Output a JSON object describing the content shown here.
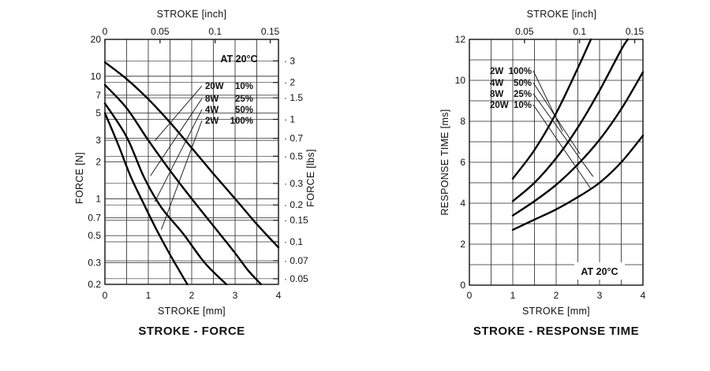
{
  "chart_data": [
    {
      "type": "line",
      "title": "STROKE - FORCE",
      "xlabel": "STROKE [mm]",
      "x2label": "STROKE [inch]",
      "ylabel": "FORCE [N]",
      "y2label": "FORCE [lbs]",
      "yscale": "log",
      "xlim": [
        0,
        4
      ],
      "ylim": [
        0.2,
        20
      ],
      "x2lim": [
        0,
        0.1575
      ],
      "x_ticks": [
        "0",
        "1",
        "2",
        "3",
        "4"
      ],
      "x2_ticks": [
        "0",
        "0.05",
        "0.1",
        "0.15"
      ],
      "y_ticks": [
        "0.2",
        "0.3",
        "0.5",
        "0.7",
        "1",
        "2",
        "3",
        "5",
        "7",
        "10",
        "20"
      ],
      "y2_ticks": [
        "0.05",
        "0.07",
        "0.1",
        "0.15",
        "0.2",
        "0.3",
        "0.5",
        "0.7",
        "1",
        "1.5",
        "2",
        "3"
      ],
      "annotation": "AT 20°C",
      "grid": true,
      "legend_position": "top-right",
      "series": [
        {
          "name": "20W 10%",
          "x": [
            0,
            0.5,
            1,
            1.5,
            2,
            2.5,
            3,
            3.5,
            4
          ],
          "y": [
            13,
            9.5,
            6.5,
            4.2,
            2.6,
            1.6,
            1.0,
            0.62,
            0.4
          ]
        },
        {
          "name": "8W 25%",
          "x": [
            0,
            0.5,
            1,
            1.5,
            2,
            2.5,
            3,
            3.3,
            3.6
          ],
          "y": [
            8.5,
            5.5,
            3.0,
            1.7,
            1.0,
            0.6,
            0.36,
            0.26,
            0.2
          ]
        },
        {
          "name": "4W 50%",
          "x": [
            0,
            0.5,
            0.9,
            1.3,
            1.8,
            2.3,
            2.8
          ],
          "y": [
            6.0,
            3.2,
            1.5,
            0.85,
            0.52,
            0.3,
            0.2
          ]
        },
        {
          "name": "2W 100%",
          "x": [
            0,
            0.3,
            0.6,
            0.9,
            1.2,
            1.5,
            1.9
          ],
          "y": [
            5.0,
            2.8,
            1.5,
            0.9,
            0.55,
            0.35,
            0.2
          ]
        }
      ]
    },
    {
      "type": "line",
      "title": "STROKE - RESPONSE TIME",
      "xlabel": "STROKE [mm]",
      "x2label": "STROKE [inch]",
      "ylabel": "RESPONSE TIME [ms]",
      "xlim": [
        0,
        4
      ],
      "ylim": [
        0,
        12
      ],
      "x2lim": [
        0,
        0.1575
      ],
      "x_ticks": [
        "0",
        "1",
        "2",
        "3",
        "4"
      ],
      "x2_ticks": [
        "0.05",
        "0.1",
        "0.15"
      ],
      "y_ticks": [
        "0",
        "2",
        "4",
        "6",
        "8",
        "10",
        "12"
      ],
      "annotation": "AT 20°C",
      "grid": true,
      "legend_position": "top-left",
      "series": [
        {
          "name": "2W 100%",
          "x": [
            1,
            1.5,
            2,
            2.5,
            2.8
          ],
          "y": [
            5.2,
            6.6,
            8.4,
            10.6,
            12
          ]
        },
        {
          "name": "4W 50%",
          "x": [
            1,
            1.5,
            2,
            2.5,
            3,
            3.5,
            3.65
          ],
          "y": [
            4.1,
            5.0,
            6.2,
            7.7,
            9.5,
            11.5,
            12
          ]
        },
        {
          "name": "8W 25%",
          "x": [
            1,
            1.5,
            2,
            2.5,
            3,
            3.5,
            4
          ],
          "y": [
            3.4,
            4.1,
            4.9,
            5.9,
            7.1,
            8.6,
            10.4
          ]
        },
        {
          "name": "20W 10%",
          "x": [
            1,
            1.5,
            2,
            2.5,
            3,
            3.5,
            4
          ],
          "y": [
            2.7,
            3.2,
            3.7,
            4.3,
            5.0,
            6.0,
            7.3
          ]
        }
      ]
    }
  ]
}
